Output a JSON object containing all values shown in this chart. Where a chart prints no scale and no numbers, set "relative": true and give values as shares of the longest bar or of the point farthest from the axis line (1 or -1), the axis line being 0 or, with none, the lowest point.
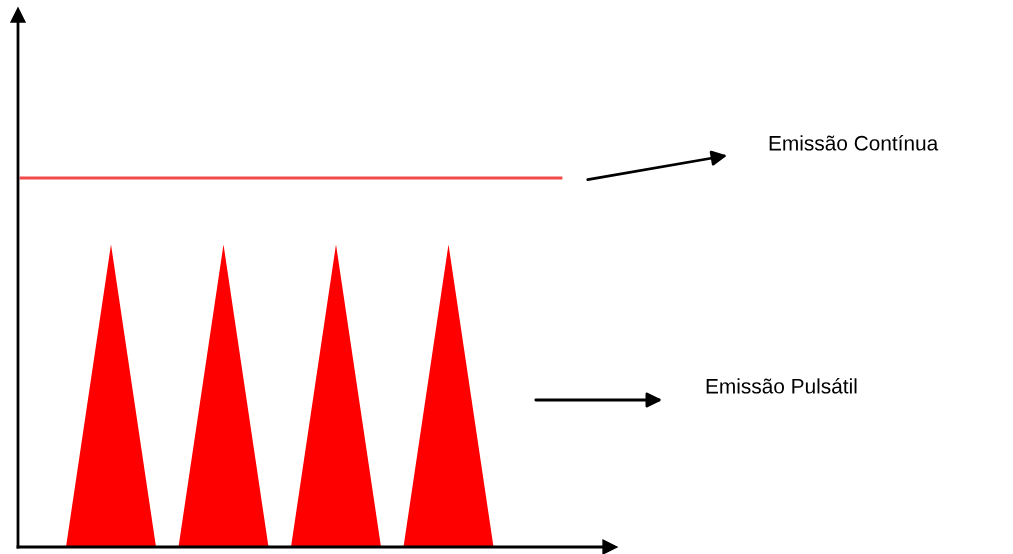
{
  "chart_data": {
    "type": "area",
    "relative": true,
    "legend": false,
    "categories": [
      null,
      null,
      null,
      null,
      null,
      null,
      null,
      null,
      null,
      null,
      null,
      null,
      null,
      null,
      null,
      null,
      null,
      null,
      null,
      null,
      null,
      null,
      null,
      null,
      null
    ],
    "series": [
      {
        "name": "Emissão Contínua",
        "type": "line",
        "color": "#f24a4a",
        "values": [
          1,
          1,
          1,
          1,
          1,
          1,
          1,
          1,
          1,
          1,
          1,
          1,
          1,
          1,
          1,
          1,
          1,
          1,
          1,
          1,
          1,
          1,
          1,
          1,
          1
        ]
      },
      {
        "name": "Emissão Pulsátil",
        "color": "#ff0000",
        "values": [
          null,
          null,
          0,
          0.41,
          0.82,
          0.41,
          0,
          0,
          0.41,
          0.82,
          0.41,
          0,
          0,
          0.41,
          0.82,
          0.41,
          0,
          0,
          0.41,
          0.82,
          0.41,
          0,
          null,
          null,
          null
        ]
      }
    ]
  }
}
